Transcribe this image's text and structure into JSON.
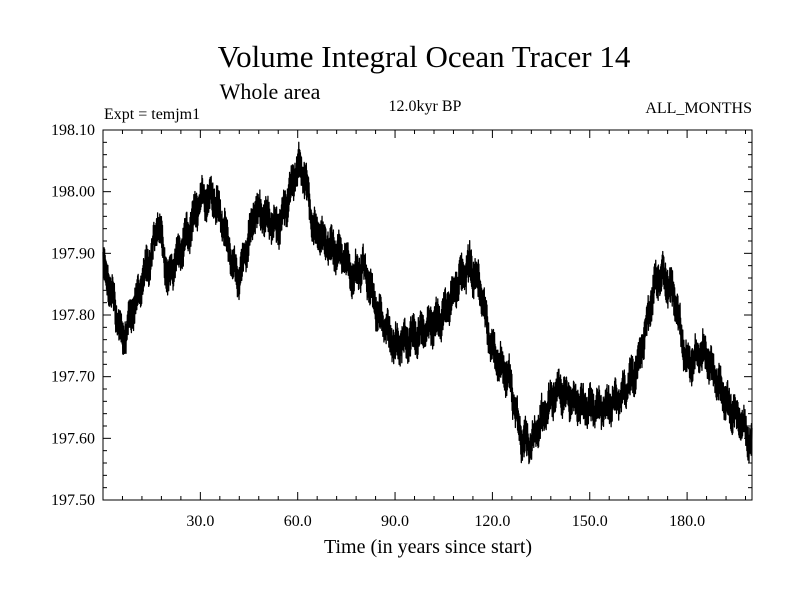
{
  "chart_data": {
    "type": "line",
    "title": "Volume Integral Ocean Tracer 14",
    "subtitle": "Whole area",
    "experiment_label": "Expt = temjm1",
    "period_label": "12.0kyr BP",
    "months_label": "ALL_MONTHS",
    "xlabel": "Time (in years since start)",
    "ylabel": "",
    "xlim": [
      0,
      200
    ],
    "ylim": [
      197.5,
      198.1
    ],
    "x_ticks": [
      "30.0",
      "60.0",
      "90.0",
      "120.0",
      "150.0",
      "180.0"
    ],
    "x_tick_values": [
      30,
      60,
      90,
      120,
      150,
      180
    ],
    "y_ticks": [
      "197.50",
      "197.60",
      "197.70",
      "197.80",
      "197.90",
      "198.00",
      "198.10"
    ],
    "y_tick_values": [
      197.5,
      197.6,
      197.7,
      197.8,
      197.9,
      198.0,
      198.1
    ],
    "noise_amplitude": 0.03,
    "series": [
      {
        "name": "Volume integral",
        "trend_x": [
          0,
          2,
          6,
          10,
          15,
          17,
          20,
          26,
          30,
          34,
          37,
          40,
          42,
          47,
          50,
          54,
          57,
          60,
          62,
          65,
          70,
          75,
          77,
          80,
          85,
          90,
          94,
          100,
          105,
          110,
          113,
          116,
          120,
          125,
          129,
          132,
          135,
          140,
          145,
          150,
          155,
          160,
          165,
          170,
          172,
          176,
          180,
          185,
          188,
          192,
          196,
          200
        ],
        "trend_y": [
          197.88,
          197.85,
          197.76,
          197.82,
          197.9,
          197.95,
          197.86,
          197.93,
          197.99,
          197.99,
          197.95,
          197.88,
          197.86,
          197.97,
          197.96,
          197.94,
          197.99,
          198.04,
          198.03,
          197.94,
          197.91,
          197.89,
          197.86,
          197.88,
          197.8,
          197.75,
          197.76,
          197.78,
          197.8,
          197.86,
          197.88,
          197.85,
          197.74,
          197.7,
          197.6,
          197.59,
          197.63,
          197.68,
          197.66,
          197.65,
          197.65,
          197.67,
          197.72,
          197.85,
          197.87,
          197.83,
          197.72,
          197.74,
          197.71,
          197.66,
          197.63,
          197.59
        ]
      }
    ]
  }
}
